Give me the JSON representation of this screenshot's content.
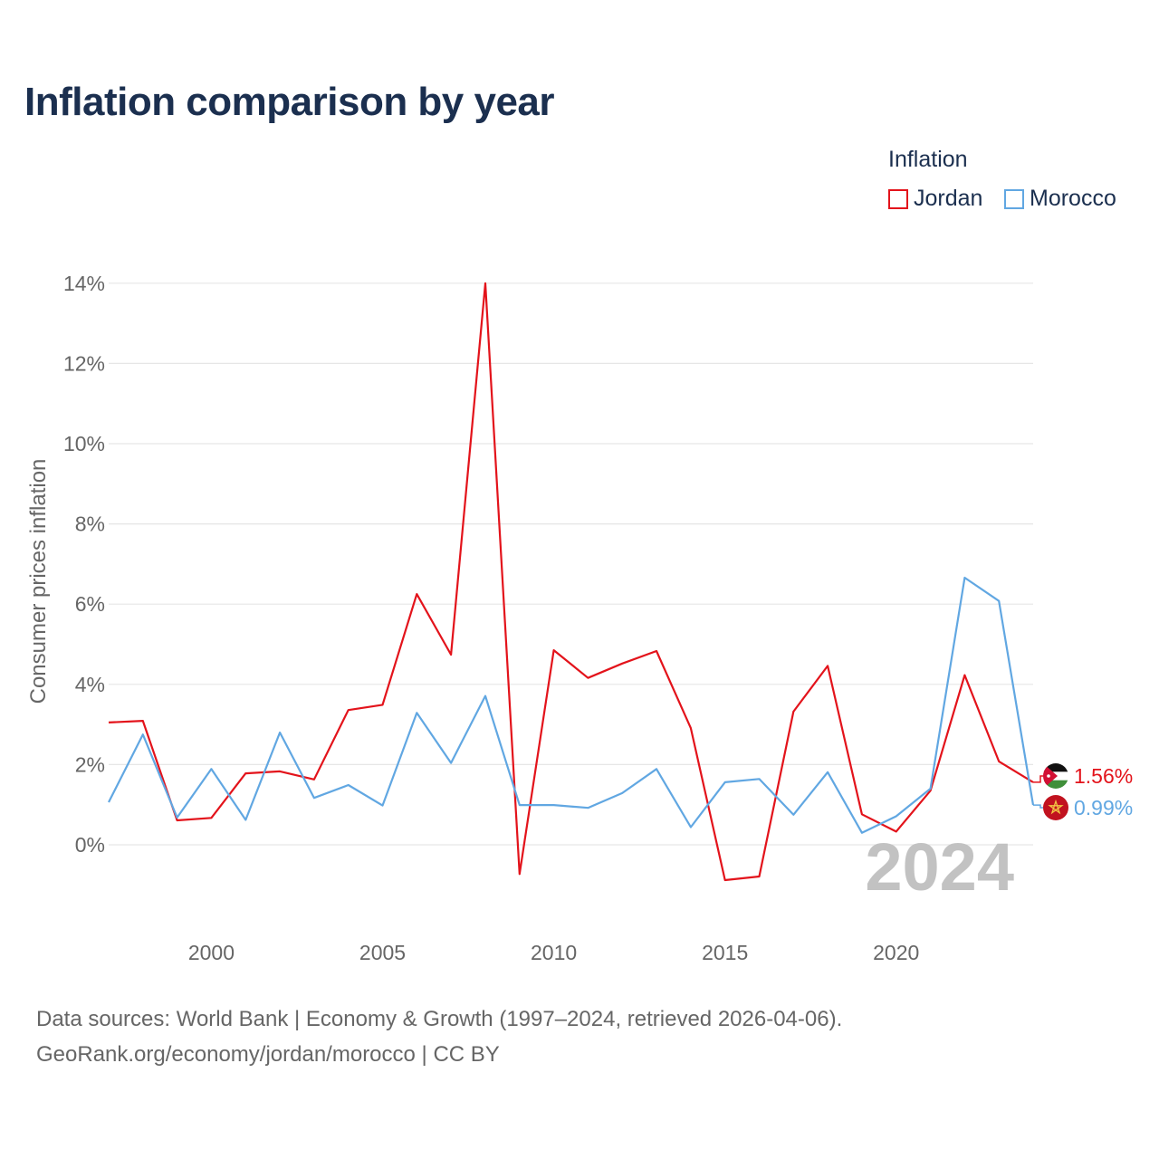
{
  "title": "Inflation comparison by year",
  "legend": {
    "title": "Inflation",
    "items": [
      {
        "label": "Jordan",
        "color": "#e3131b"
      },
      {
        "label": "Morocco",
        "color": "#61a7e2"
      }
    ]
  },
  "chart_data": {
    "type": "line",
    "ylabel": "Consumer prices inflation",
    "xlabel": "",
    "xlim": [
      1997,
      2024
    ],
    "ylim": [
      -2,
      14
    ],
    "y_ticks": [
      0,
      2,
      4,
      6,
      8,
      10,
      12,
      14
    ],
    "y_tick_labels": [
      "0%",
      "2%",
      "4%",
      "6%",
      "8%",
      "10%",
      "12%",
      "14%"
    ],
    "x_ticks": [
      2000,
      2005,
      2010,
      2015,
      2020
    ],
    "x_tick_labels": [
      "2000",
      "2005",
      "2010",
      "2015",
      "2020"
    ],
    "x": [
      1997,
      1998,
      1999,
      2000,
      2001,
      2002,
      2003,
      2004,
      2005,
      2006,
      2007,
      2008,
      2009,
      2010,
      2011,
      2012,
      2013,
      2014,
      2015,
      2016,
      2017,
      2018,
      2019,
      2020,
      2021,
      2022,
      2023,
      2024
    ],
    "series": [
      {
        "name": "Jordan",
        "color": "#e3131b",
        "end_label": "1.56%",
        "values": [
          3.05,
          3.09,
          0.61,
          0.67,
          1.78,
          1.83,
          1.63,
          3.36,
          3.49,
          6.25,
          4.74,
          14.0,
          -0.73,
          4.85,
          4.16,
          4.52,
          4.83,
          2.91,
          -0.88,
          -0.79,
          3.32,
          4.46,
          0.76,
          0.33,
          1.35,
          4.23,
          2.08,
          1.56
        ]
      },
      {
        "name": "Morocco",
        "color": "#61a7e2",
        "end_label": "0.99%",
        "values": [
          1.06,
          2.75,
          0.68,
          1.89,
          0.62,
          2.8,
          1.17,
          1.49,
          0.98,
          3.29,
          2.04,
          3.71,
          0.99,
          0.99,
          0.92,
          1.29,
          1.89,
          0.44,
          1.56,
          1.64,
          0.75,
          1.81,
          0.3,
          0.71,
          1.4,
          6.66,
          6.08,
          0.99
        ]
      }
    ],
    "watermark_year": "2024"
  },
  "footer": {
    "line1": "Data sources: World Bank | Economy & Growth (1997–2024, retrieved 2026-04-06).",
    "line2": "GeoRank.org/economy/jordan/morocco | CC BY"
  }
}
